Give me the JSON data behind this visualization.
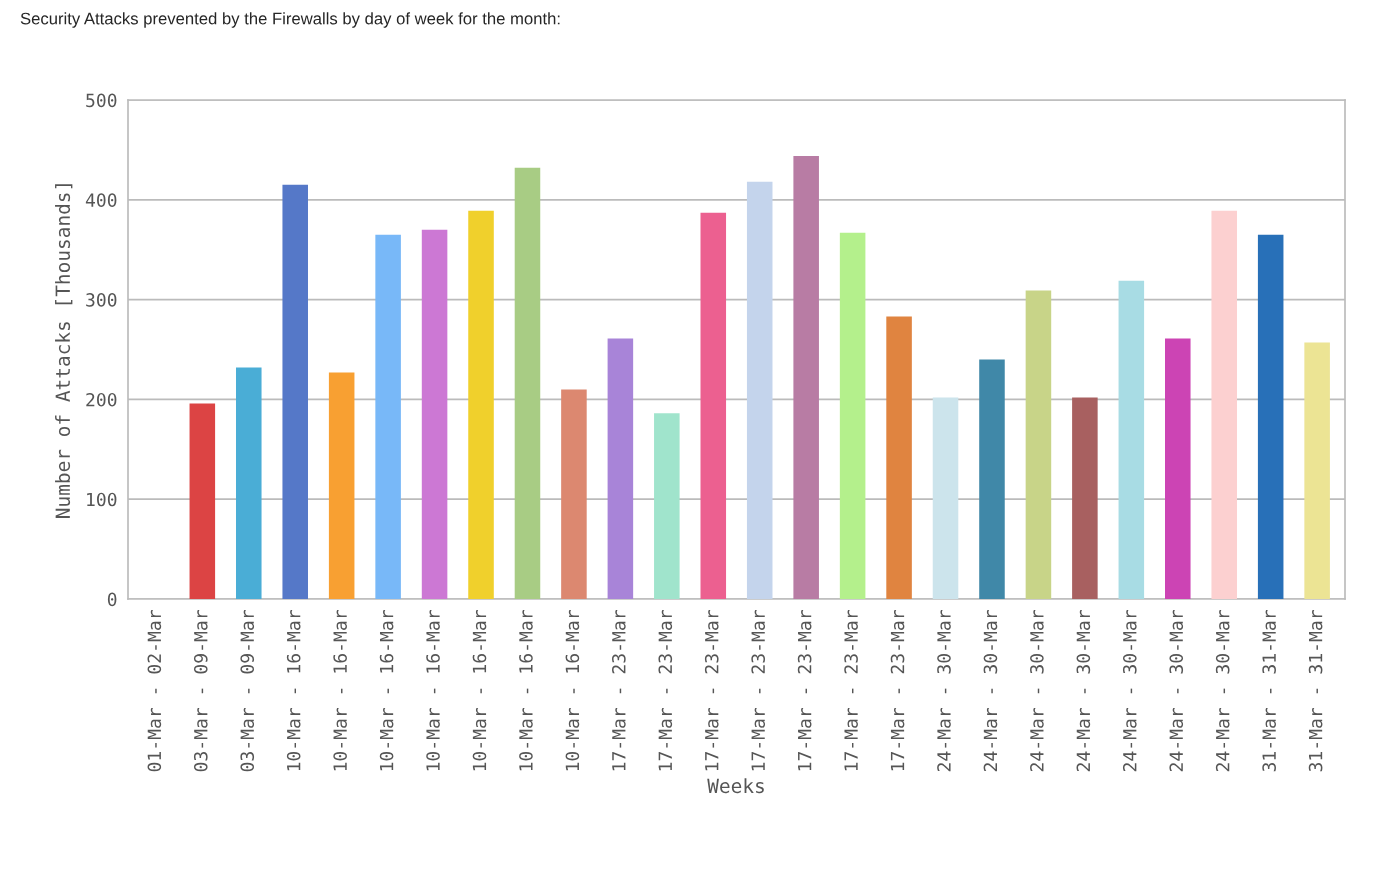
{
  "chart_data": {
    "type": "bar",
    "title": "Security Attacks prevented by the Firewalls by day of week for the month:",
    "xlabel": "Weeks",
    "ylabel": "Number of Attacks [Thousands]",
    "categories": [
      "01-Mar - 02-Mar",
      "03-Mar - 09-Mar",
      "03-Mar - 09-Mar",
      "10-Mar - 16-Mar",
      "10-Mar - 16-Mar",
      "10-Mar - 16-Mar",
      "10-Mar - 16-Mar",
      "10-Mar - 16-Mar",
      "10-Mar - 16-Mar",
      "10-Mar - 16-Mar",
      "17-Mar - 23-Mar",
      "17-Mar - 23-Mar",
      "17-Mar - 23-Mar",
      "17-Mar - 23-Mar",
      "17-Mar - 23-Mar",
      "17-Mar - 23-Mar",
      "17-Mar - 23-Mar",
      "24-Mar - 30-Mar",
      "24-Mar - 30-Mar",
      "24-Mar - 30-Mar",
      "24-Mar - 30-Mar",
      "24-Mar - 30-Mar",
      "24-Mar - 30-Mar",
      "24-Mar - 30-Mar",
      "31-Mar - 31-Mar",
      "31-Mar - 31-Mar"
    ],
    "values": [
      null,
      196,
      232,
      415,
      227,
      365,
      370,
      389,
      432,
      210,
      261,
      186,
      387,
      418,
      444,
      367,
      283,
      202,
      240,
      309,
      202,
      319,
      261,
      389,
      365,
      257
    ],
    "colors": [
      null,
      "#dc4444",
      "#4aadd6",
      "#5578c8",
      "#f8a032",
      "#78b8f8",
      "#cc78d4",
      "#f0d02c",
      "#a8cc84",
      "#dc8870",
      "#a884d8",
      "#a0e4cc",
      "#ec6090",
      "#c4d4ec",
      "#b87ca4",
      "#b4f08c",
      "#e08440",
      "#cce4ec",
      "#4088a8",
      "#c8d488",
      "#a86060",
      "#a8dce4",
      "#cc44b4",
      "#fcd0d0",
      "#2870b8",
      "#ece494"
    ],
    "ylim": [
      0,
      500
    ],
    "yticks": [
      0,
      100,
      200,
      300,
      400,
      500
    ],
    "grid": "y"
  }
}
